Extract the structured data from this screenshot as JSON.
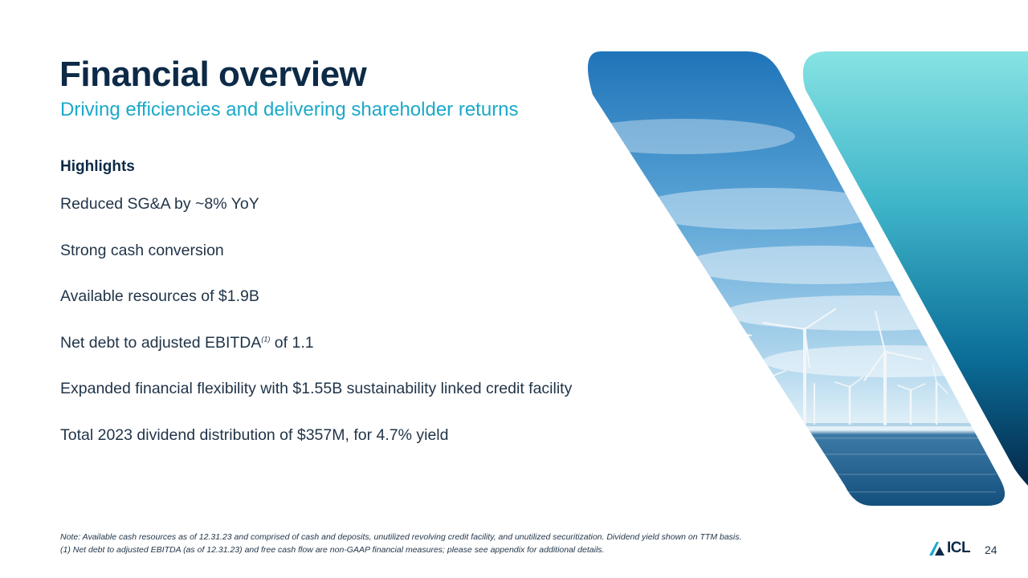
{
  "header": {
    "title": "Financial overview",
    "subtitle": "Driving efficiencies and delivering shareholder returns"
  },
  "highlights": {
    "heading": "Highlights",
    "items": [
      {
        "text": "Reduced SG&A by ~8% YoY"
      },
      {
        "text": "Strong cash conversion"
      },
      {
        "text": "Available resources of $1.9B"
      },
      {
        "text": "Net debt to adjusted EBITDA",
        "superscript": "(1)",
        "suffix": " of 1.1"
      },
      {
        "text": "Expanded financial flexibility with $1.55B sustainability linked credit facility"
      },
      {
        "text": "Total 2023 dividend distribution of $357M, for 4.7% yield"
      }
    ]
  },
  "notes": {
    "line1": "Note: Available cash resources as of 12.31.23 and comprised of cash and deposits, unutilized revolving credit facility, and unutilized securitization. Dividend yield shown on TTM basis.",
    "line2": "(1) Net debt to adjusted EBITDA (as of 12.31.23) and free cash flow are non-GAAP financial measures; please see appendix for additional details."
  },
  "footer": {
    "logo_text": "ICL",
    "page_number": "24"
  },
  "colors": {
    "title": "#0d2a47",
    "subtitle": "#1ba9c9",
    "body_text": "#1f3347",
    "gradient_top": "#86e3e3",
    "gradient_bottom": "#04284a"
  },
  "image": {
    "subject": "offshore wind turbines at sea under a blue sky"
  }
}
